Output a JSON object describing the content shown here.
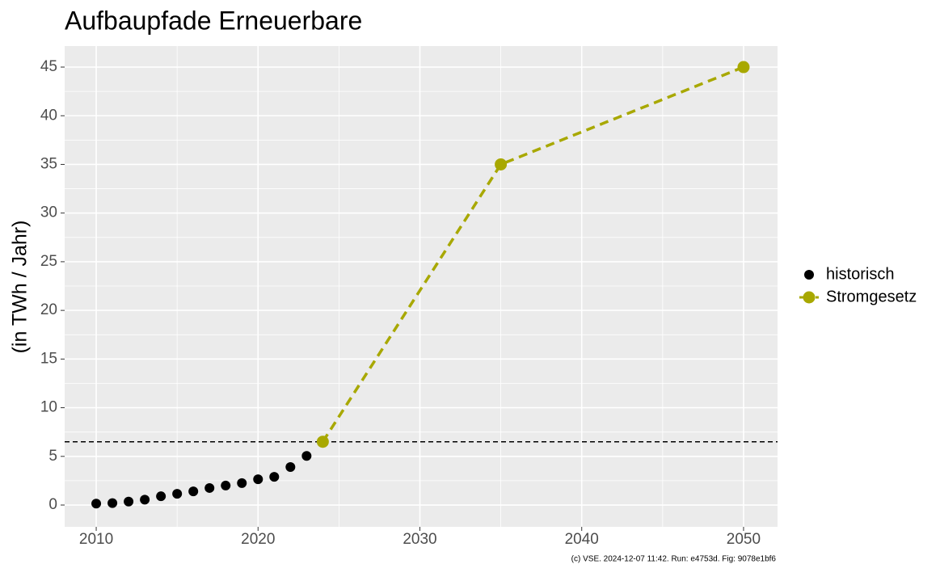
{
  "chart_data": {
    "type": "line",
    "title": "Aufbaupfade Erneuerbare",
    "y_label": "(in TWh / Jahr)",
    "footnote": "(c) VSE. 2024-12-07 11:42. Run: e4753d. Fig: 9078e1bf6",
    "xlim": [
      2008.05,
      2052.1
    ],
    "xticks": [
      2010,
      2020,
      2030,
      2040,
      2050
    ],
    "minor_xticks": [
      2015,
      2025,
      2035,
      2045
    ],
    "ylim": [
      -2.24,
      47.16
    ],
    "yticks": [
      0,
      5,
      10,
      15,
      20,
      25,
      30,
      35,
      40,
      45
    ],
    "minor_yticks": [
      2.5,
      7.5,
      12.5,
      17.5,
      22.5,
      27.5,
      32.5,
      37.5,
      42.5
    ],
    "grid": true,
    "legend_position": "right",
    "hline": 6.5,
    "series": [
      {
        "name": "historisch",
        "color": "#000000",
        "line": false,
        "x": [
          2010,
          2011,
          2012,
          2013,
          2014,
          2015,
          2016,
          2017,
          2018,
          2019,
          2020,
          2021,
          2022,
          2023,
          2024
        ],
        "values": [
          0.15,
          0.2,
          0.35,
          0.55,
          0.9,
          1.15,
          1.4,
          1.75,
          2.0,
          2.25,
          2.65,
          2.9,
          3.9,
          5.05,
          6.55
        ]
      },
      {
        "name": "Stromgesetz",
        "color": "#a8a800",
        "line": true,
        "x": [
          2024,
          2035,
          2050
        ],
        "values": [
          6.5,
          35,
          45
        ]
      }
    ]
  }
}
